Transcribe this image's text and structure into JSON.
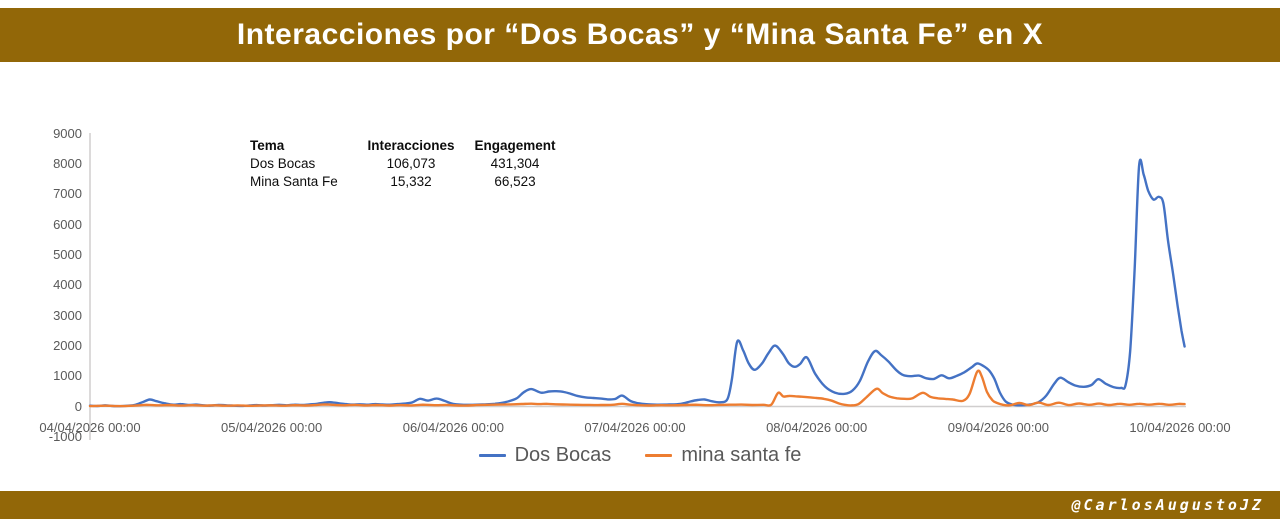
{
  "header": {
    "title": "Interacciones por “Dos Bocas” y “Mina Santa Fe” en X",
    "bg_color": "#926708",
    "text_color": "#ffffff"
  },
  "footer": {
    "handle": "@CarlosAugustoJZ",
    "bg_color": "#926708"
  },
  "summary_table": {
    "headers": [
      "Tema",
      "Interacciones",
      "Engagement"
    ],
    "rows": [
      [
        "Dos Bocas",
        "106,073",
        "431,304"
      ],
      [
        "Mina Santa Fe",
        "15,332",
        "66,523"
      ]
    ]
  },
  "chart_data": {
    "type": "line",
    "title": "",
    "xlabel": "",
    "ylabel": "",
    "grid": false,
    "legend_position": "bottom",
    "x_axis": {
      "labels": [
        "04/04/2026 00:00",
        "05/04/2026 00:00",
        "06/04/2026 00:00",
        "07/04/2026 00:00",
        "08/04/2026 00:00",
        "09/04/2026 00:00",
        "10/04/2026 00:00"
      ],
      "hours_per_label": 24,
      "unit": "hours since 04/04/2026 00:00"
    },
    "y_axis": {
      "min": -1000,
      "max": 9000,
      "tick_step": 1000,
      "ticks": [
        9000,
        8000,
        7000,
        6000,
        5000,
        4000,
        3000,
        2000,
        1000,
        0,
        -1000
      ]
    },
    "series": [
      {
        "name": "Dos Bocas",
        "color": "#4472C4",
        "points": [
          [
            0,
            25
          ],
          [
            1,
            15
          ],
          [
            2,
            40
          ],
          [
            3,
            15
          ],
          [
            4,
            10
          ],
          [
            5,
            25
          ],
          [
            6,
            55
          ],
          [
            7,
            150
          ],
          [
            7.9,
            230
          ],
          [
            8.8,
            175
          ],
          [
            9.8,
            110
          ],
          [
            11,
            60
          ],
          [
            12,
            80
          ],
          [
            13,
            50
          ],
          [
            14,
            62
          ],
          [
            15,
            38
          ],
          [
            16,
            30
          ],
          [
            17,
            52
          ],
          [
            18,
            40
          ],
          [
            19,
            26
          ],
          [
            20,
            20
          ],
          [
            21,
            32
          ],
          [
            22,
            45
          ],
          [
            23,
            30
          ],
          [
            24,
            42
          ],
          [
            25,
            55
          ],
          [
            26,
            40
          ],
          [
            27,
            60
          ],
          [
            28,
            48
          ],
          [
            29,
            70
          ],
          [
            30,
            88
          ],
          [
            31,
            128
          ],
          [
            31.7,
            142
          ],
          [
            32.6,
            115
          ],
          [
            33.6,
            85
          ],
          [
            34.6,
            62
          ],
          [
            35.6,
            72
          ],
          [
            36.6,
            58
          ],
          [
            37.6,
            80
          ],
          [
            38.6,
            66
          ],
          [
            39.6,
            58
          ],
          [
            40.6,
            80
          ],
          [
            41.6,
            95
          ],
          [
            42.6,
            140
          ],
          [
            43.6,
            255
          ],
          [
            44.6,
            195
          ],
          [
            45.8,
            262
          ],
          [
            46.9,
            180
          ],
          [
            48,
            85
          ],
          [
            50,
            55
          ],
          [
            52,
            70
          ],
          [
            53.5,
            90
          ],
          [
            54.8,
            140
          ],
          [
            56.3,
            260
          ],
          [
            57.3,
            470
          ],
          [
            58.3,
            575
          ],
          [
            59.6,
            455
          ],
          [
            60.6,
            495
          ],
          [
            61.6,
            505
          ],
          [
            62.6,
            480
          ],
          [
            63.5,
            420
          ],
          [
            64.4,
            350
          ],
          [
            65.5,
            300
          ],
          [
            66.5,
            280
          ],
          [
            67.5,
            260
          ],
          [
            68.4,
            235
          ],
          [
            69.4,
            250
          ],
          [
            70.3,
            360
          ],
          [
            71.4,
            180
          ],
          [
            72.4,
            110
          ],
          [
            73.5,
            75
          ],
          [
            75,
            60
          ],
          [
            76.5,
            65
          ],
          [
            78,
            85
          ],
          [
            79.3,
            165
          ],
          [
            80.3,
            215
          ],
          [
            81.2,
            230
          ],
          [
            82.2,
            170
          ],
          [
            83.2,
            140
          ],
          [
            84.2,
            240
          ],
          [
            84.8,
            900
          ],
          [
            85.5,
            2140
          ],
          [
            86.3,
            1840
          ],
          [
            87,
            1430
          ],
          [
            87.8,
            1210
          ],
          [
            88.8,
            1430
          ],
          [
            89.6,
            1750
          ],
          [
            90.5,
            2010
          ],
          [
            91.5,
            1750
          ],
          [
            92.3,
            1430
          ],
          [
            93.1,
            1310
          ],
          [
            93.8,
            1400
          ],
          [
            94.7,
            1620
          ],
          [
            95.8,
            1080
          ],
          [
            97.1,
            660
          ],
          [
            98.4,
            460
          ],
          [
            99.7,
            420
          ],
          [
            100.7,
            520
          ],
          [
            101.7,
            840
          ],
          [
            102.8,
            1500
          ],
          [
            103.7,
            1830
          ],
          [
            104.5,
            1700
          ],
          [
            105.5,
            1480
          ],
          [
            106.6,
            1180
          ],
          [
            107.5,
            1030
          ],
          [
            108.5,
            1000
          ],
          [
            109.5,
            1020
          ],
          [
            110.5,
            930
          ],
          [
            111.5,
            910
          ],
          [
            112.5,
            1030
          ],
          [
            113.5,
            930
          ],
          [
            114.5,
            1010
          ],
          [
            115.5,
            1130
          ],
          [
            116.5,
            1300
          ],
          [
            117.2,
            1420
          ],
          [
            118,
            1340
          ],
          [
            118.8,
            1180
          ],
          [
            119.5,
            900
          ],
          [
            120.2,
            460
          ],
          [
            121,
            160
          ],
          [
            122,
            55
          ],
          [
            123,
            40
          ],
          [
            124,
            60
          ],
          [
            125.2,
            130
          ],
          [
            126.3,
            350
          ],
          [
            127.4,
            760
          ],
          [
            128.2,
            950
          ],
          [
            129.2,
            810
          ],
          [
            130.2,
            690
          ],
          [
            131.3,
            650
          ],
          [
            132.3,
            710
          ],
          [
            133.2,
            900
          ],
          [
            134.2,
            750
          ],
          [
            135.2,
            640
          ],
          [
            136.2,
            615
          ],
          [
            136.8,
            700
          ],
          [
            137.4,
            1800
          ],
          [
            138,
            4500
          ],
          [
            138.6,
            7950
          ],
          [
            139.2,
            7650
          ],
          [
            139.8,
            7120
          ],
          [
            140.5,
            6830
          ],
          [
            141.2,
            6920
          ],
          [
            141.8,
            6700
          ],
          [
            142.4,
            5500
          ],
          [
            143.1,
            4350
          ],
          [
            143.7,
            3300
          ],
          [
            144.2,
            2500
          ],
          [
            144.6,
            1980
          ]
        ]
      },
      {
        "name": "mina santa fe",
        "color": "#ED7D31",
        "points": [
          [
            0,
            12
          ],
          [
            2,
            28
          ],
          [
            4,
            12
          ],
          [
            6,
            30
          ],
          [
            7.5,
            55
          ],
          [
            9,
            38
          ],
          [
            10.5,
            48
          ],
          [
            12,
            30
          ],
          [
            13.5,
            42
          ],
          [
            15,
            28
          ],
          [
            16.5,
            40
          ],
          [
            18,
            26
          ],
          [
            19.5,
            36
          ],
          [
            21,
            24
          ],
          [
            22.5,
            34
          ],
          [
            24,
            38
          ],
          [
            25.5,
            26
          ],
          [
            27,
            42
          ],
          [
            28.5,
            32
          ],
          [
            30,
            52
          ],
          [
            31,
            68
          ],
          [
            32,
            55
          ],
          [
            33.5,
            40
          ],
          [
            35,
            52
          ],
          [
            36.5,
            36
          ],
          [
            38,
            48
          ],
          [
            39.5,
            34
          ],
          [
            41,
            46
          ],
          [
            42.5,
            36
          ],
          [
            44,
            58
          ],
          [
            45.5,
            44
          ],
          [
            47,
            52
          ],
          [
            48,
            40
          ],
          [
            49.5,
            30
          ],
          [
            51,
            45
          ],
          [
            52.5,
            55
          ],
          [
            54,
            62
          ],
          [
            55.5,
            70
          ],
          [
            57,
            82
          ],
          [
            58.3,
            92
          ],
          [
            59.3,
            78
          ],
          [
            60.3,
            88
          ],
          [
            61.5,
            72
          ],
          [
            63,
            62
          ],
          [
            64.5,
            56
          ],
          [
            66,
            52
          ],
          [
            67.5,
            48
          ],
          [
            69,
            55
          ],
          [
            70.3,
            88
          ],
          [
            71.4,
            58
          ],
          [
            72.5,
            44
          ],
          [
            74,
            34
          ],
          [
            75.5,
            42
          ],
          [
            77,
            38
          ],
          [
            78.5,
            50
          ],
          [
            80,
            58
          ],
          [
            81.5,
            44
          ],
          [
            83,
            52
          ],
          [
            84.5,
            58
          ],
          [
            86,
            62
          ],
          [
            87.5,
            50
          ],
          [
            89,
            55
          ],
          [
            90,
            58
          ],
          [
            90.9,
            450
          ],
          [
            91.6,
            330
          ],
          [
            92.3,
            348
          ],
          [
            93.2,
            338
          ],
          [
            94,
            322
          ],
          [
            95,
            302
          ],
          [
            96,
            282
          ],
          [
            97,
            252
          ],
          [
            98,
            192
          ],
          [
            99,
            95
          ],
          [
            99.7,
            55
          ],
          [
            100.5,
            35
          ],
          [
            101.5,
            75
          ],
          [
            102.6,
            310
          ],
          [
            103.9,
            585
          ],
          [
            104.7,
            445
          ],
          [
            105.6,
            330
          ],
          [
            106.6,
            272
          ],
          [
            107.6,
            255
          ],
          [
            108.6,
            268
          ],
          [
            110,
            452
          ],
          [
            111,
            322
          ],
          [
            112,
            272
          ],
          [
            113,
            252
          ],
          [
            114,
            232
          ],
          [
            115.3,
            185
          ],
          [
            116.2,
            420
          ],
          [
            117.2,
            1150
          ],
          [
            117.8,
            1000
          ],
          [
            118.5,
            480
          ],
          [
            119.2,
            210
          ],
          [
            119.8,
            120
          ],
          [
            120.5,
            62
          ],
          [
            121.5,
            40
          ],
          [
            122.8,
            115
          ],
          [
            124,
            45
          ],
          [
            125.3,
            130
          ],
          [
            126.6,
            50
          ],
          [
            128,
            125
          ],
          [
            129.3,
            45
          ],
          [
            130.6,
            100
          ],
          [
            132,
            55
          ],
          [
            133.3,
            95
          ],
          [
            134.6,
            50
          ],
          [
            136,
            90
          ],
          [
            137.3,
            55
          ],
          [
            138.6,
            90
          ],
          [
            140,
            60
          ],
          [
            141.3,
            90
          ],
          [
            142.6,
            55
          ],
          [
            143.8,
            85
          ],
          [
            144.6,
            78
          ]
        ]
      }
    ],
    "legend": [
      {
        "label": "Dos Bocas",
        "color": "#4472C4"
      },
      {
        "label": "mina santa fe",
        "color": "#ED7D31"
      }
    ],
    "axis_color": "#d0cece",
    "label_color": "#595959"
  }
}
